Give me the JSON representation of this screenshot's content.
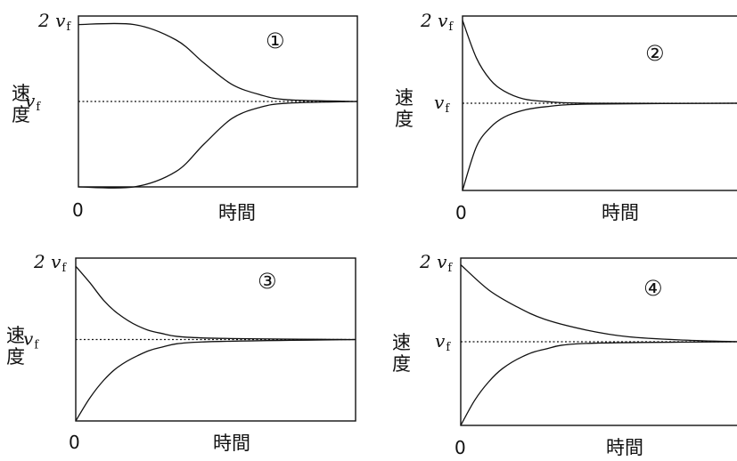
{
  "chart_data": [
    {
      "type": "line",
      "panel_label": "①",
      "xlabel": "時間",
      "ylabel": "速度",
      "x_tick_labels": [
        "0"
      ],
      "y_tick_labels": [
        "v_f",
        "2 v_f"
      ],
      "y_tick_label_parts": [
        {
          "value": "1",
          "prefix": "",
          "symbol": "v",
          "subscript": "f"
        },
        {
          "value": "2",
          "prefix": "2 ",
          "symbol": "v",
          "subscript": "f"
        }
      ],
      "ylim": [
        0,
        2
      ],
      "reference_line": {
        "y": 1,
        "style": "dotted"
      },
      "series": [
        {
          "x": [
            0,
            0.2,
            0.35,
            0.45,
            0.55,
            0.65,
            0.75,
            1.0
          ],
          "values": [
            1.9,
            1.9,
            1.72,
            1.45,
            1.2,
            1.08,
            1.02,
            1.0
          ]
        },
        {
          "x": [
            0,
            0.2,
            0.35,
            0.45,
            0.55,
            0.65,
            0.75,
            1.0
          ],
          "values": [
            0.0,
            0.0,
            0.18,
            0.5,
            0.8,
            0.93,
            0.98,
            1.0
          ]
        }
      ]
    },
    {
      "type": "line",
      "panel_label": "②",
      "xlabel": "時間",
      "ylabel": "速度",
      "x_tick_labels": [
        "0"
      ],
      "y_tick_labels": [
        "v_f",
        "2 v_f"
      ],
      "y_tick_label_parts": [
        {
          "value": "1",
          "prefix": "",
          "symbol": "v",
          "subscript": "f"
        },
        {
          "value": "2",
          "prefix": "2 ",
          "symbol": "v",
          "subscript": "f"
        }
      ],
      "ylim": [
        0,
        2
      ],
      "reference_line": {
        "y": 1,
        "style": "dotted"
      },
      "series": [
        {
          "x": [
            0,
            0.05,
            0.1,
            0.15,
            0.22,
            0.3,
            0.45,
            1.0
          ],
          "values": [
            1.95,
            1.52,
            1.27,
            1.14,
            1.05,
            1.02,
            1.0,
            1.0
          ]
        },
        {
          "x": [
            0,
            0.05,
            0.1,
            0.15,
            0.22,
            0.3,
            0.45,
            1.0
          ],
          "values": [
            0.0,
            0.5,
            0.72,
            0.84,
            0.92,
            0.96,
            0.99,
            1.0
          ]
        }
      ]
    },
    {
      "type": "line",
      "panel_label": "③",
      "xlabel": "時間",
      "ylabel": "速度",
      "x_tick_labels": [
        "0"
      ],
      "y_tick_labels": [
        "v_f",
        "2 v_f"
      ],
      "y_tick_label_parts": [
        {
          "value": "1",
          "prefix": "",
          "symbol": "v",
          "subscript": "f"
        },
        {
          "value": "2",
          "prefix": "2 ",
          "symbol": "v",
          "subscript": "f"
        }
      ],
      "ylim": [
        0,
        2
      ],
      "reference_line": {
        "y": 1,
        "style": "dotted"
      },
      "series": [
        {
          "x": [
            0,
            0.05,
            0.1,
            0.15,
            0.22,
            0.3,
            0.45,
            1.0
          ],
          "values": [
            1.9,
            1.7,
            1.48,
            1.32,
            1.17,
            1.08,
            1.02,
            1.0
          ]
        },
        {
          "x": [
            0,
            0.05,
            0.1,
            0.15,
            0.22,
            0.3,
            0.45,
            1.0
          ],
          "values": [
            0.0,
            0.28,
            0.5,
            0.66,
            0.8,
            0.9,
            0.97,
            1.0
          ]
        }
      ]
    },
    {
      "type": "line",
      "panel_label": "④",
      "xlabel": "時間",
      "ylabel": "速度",
      "x_tick_labels": [
        "0"
      ],
      "y_tick_labels": [
        "v_f",
        "2 v_f"
      ],
      "y_tick_label_parts": [
        {
          "value": "1",
          "prefix": "",
          "symbol": "v",
          "subscript": "f"
        },
        {
          "value": "2",
          "prefix": "2 ",
          "symbol": "v",
          "subscript": "f"
        }
      ],
      "ylim": [
        0,
        2
      ],
      "reference_line": {
        "y": 1,
        "style": "dotted"
      },
      "series": [
        {
          "x": [
            0,
            0.1,
            0.2,
            0.3,
            0.45,
            0.6,
            0.8,
            1.0
          ],
          "values": [
            1.92,
            1.62,
            1.42,
            1.27,
            1.14,
            1.06,
            1.02,
            1.0
          ]
        },
        {
          "x": [
            0,
            0.05,
            0.1,
            0.15,
            0.22,
            0.3,
            0.45,
            1.0
          ],
          "values": [
            0.0,
            0.3,
            0.52,
            0.68,
            0.82,
            0.91,
            0.98,
            1.0
          ]
        }
      ]
    }
  ]
}
